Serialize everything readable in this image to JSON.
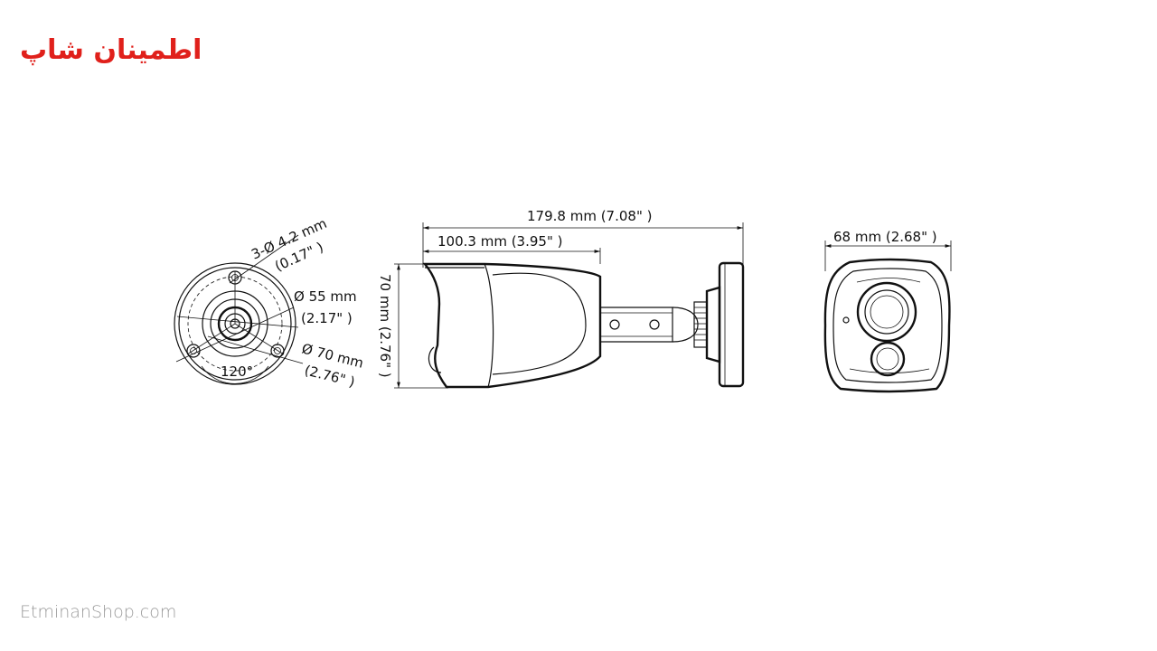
{
  "brand": {
    "logo_text": "اطمینان شاپ",
    "logo_color": "#e0201b",
    "website": "EtminanShop.com"
  },
  "diagram": {
    "front_view": {
      "hole_spec": "3-Ø 4.2 mm",
      "hole_spec_inch": "(0.17\" )",
      "inner_diameter": "Ø 55 mm",
      "inner_diameter_inch": "(2.17\" )",
      "outer_diameter": "Ø 70 mm",
      "outer_diameter_inch": "(2.76\" )",
      "angle": "120°"
    },
    "side_view": {
      "total_length": "179.8 mm (7.08\" )",
      "body_length": "100.3 mm (3.95\" )",
      "height": "70 mm (2.76\" )"
    },
    "back_view": {
      "width": "68 mm (2.68\" )"
    }
  }
}
